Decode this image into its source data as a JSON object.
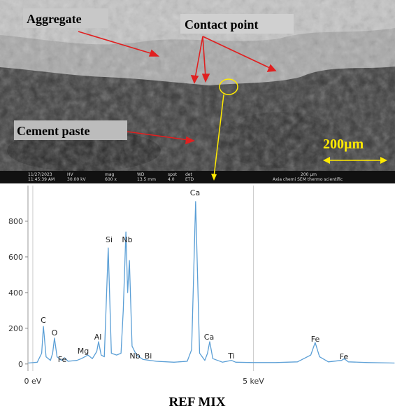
{
  "sem_image": {
    "labels": {
      "aggregate": "Aggregate",
      "contact_point": "Contact point",
      "cement_paste": "Cement paste",
      "scale": "200µm"
    },
    "info_bar": {
      "date": "11/27/2023",
      "time": "11:45:39 AM",
      "hv_label": "HV",
      "hv": "30.00 kV",
      "mag_label": "mag",
      "mag": "600 x",
      "wd_label": "WD",
      "wd": "13.5 mm",
      "spot_label": "spot",
      "spot": "4.0",
      "det_label": "det",
      "det": "ETD",
      "scale": "200 µm",
      "instrument": "Axia chemi SEM  thermo scientific"
    }
  },
  "chart_data": {
    "type": "line",
    "x": [
      -0.1,
      0.1,
      0.2,
      0.24,
      0.3,
      0.4,
      0.45,
      0.49,
      0.55,
      0.65,
      0.72,
      0.8,
      1.0,
      1.1,
      1.25,
      1.35,
      1.45,
      1.49,
      1.55,
      1.62,
      1.71,
      1.78,
      1.9,
      2.0,
      2.05,
      2.11,
      2.15,
      2.19,
      2.25,
      2.35,
      2.5,
      2.8,
      3.2,
      3.5,
      3.6,
      3.69,
      3.78,
      3.9,
      3.96,
      4.01,
      4.08,
      4.3,
      4.5,
      4.6,
      5.0,
      5.5,
      6.0,
      6.3,
      6.4,
      6.5,
      6.7,
      7.0,
      7.06,
      7.15,
      7.6,
      8.2
    ],
    "series": [
      {
        "color": "#5b9fd6",
        "values": [
          5,
          10,
          60,
          210,
          40,
          20,
          60,
          145,
          40,
          20,
          35,
          15,
          20,
          30,
          50,
          30,
          70,
          125,
          50,
          40,
          650,
          60,
          50,
          60,
          300,
          740,
          400,
          580,
          100,
          50,
          25,
          15,
          10,
          15,
          80,
          910,
          60,
          20,
          60,
          125,
          30,
          10,
          20,
          10,
          8,
          8,
          12,
          50,
          120,
          40,
          12,
          20,
          30,
          12,
          8,
          5
        ]
      }
    ],
    "xlim": [
      -0.11,
      8.21
    ],
    "ylim": [
      -40,
      1000
    ],
    "xticks": [
      {
        "value": 0,
        "label": "0 eV"
      },
      {
        "value": 5,
        "label": "5 keV"
      }
    ],
    "yticks": [
      0,
      200,
      400,
      600,
      800
    ],
    "peak_labels": [
      "C",
      "O",
      "Fe",
      "Mg",
      "Al",
      "Si",
      "Nb",
      "Nb",
      "Bi",
      "Ca",
      "Ca",
      "Ti",
      "Fe",
      "Fe"
    ],
    "caption": "REF MIX"
  }
}
